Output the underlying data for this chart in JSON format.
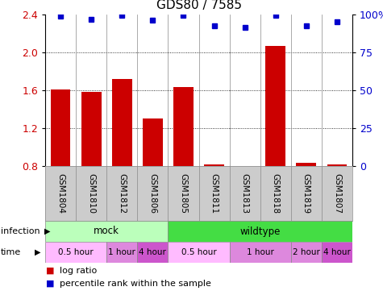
{
  "title": "GDS80 / 7585",
  "samples": [
    "GSM1804",
    "GSM1810",
    "GSM1812",
    "GSM1806",
    "GSM1805",
    "GSM1811",
    "GSM1813",
    "GSM1818",
    "GSM1819",
    "GSM1807"
  ],
  "log_ratio": [
    1.61,
    1.58,
    1.72,
    1.3,
    1.63,
    0.82,
    0.8,
    2.07,
    0.83,
    0.82
  ],
  "percentile_y": [
    2.38,
    2.35,
    2.395,
    2.34,
    2.395,
    2.285,
    2.26,
    2.395,
    2.285,
    2.32
  ],
  "ylim": [
    0.8,
    2.4
  ],
  "yticks_left": [
    0.8,
    1.2,
    1.6,
    2.0,
    2.4
  ],
  "yticks_right": [
    0,
    25,
    50,
    75,
    100
  ],
  "bar_color": "#cc0000",
  "dot_color": "#0000cc",
  "infection_groups": [
    {
      "label": "mock",
      "start": 0,
      "end": 4,
      "color": "#bbffbb"
    },
    {
      "label": "wildtype",
      "start": 4,
      "end": 10,
      "color": "#44dd44"
    }
  ],
  "time_groups": [
    {
      "label": "0.5 hour",
      "start": 0,
      "end": 2,
      "color": "#ffbbff"
    },
    {
      "label": "1 hour",
      "start": 2,
      "end": 3,
      "color": "#dd88dd"
    },
    {
      "label": "4 hour",
      "start": 3,
      "end": 4,
      "color": "#cc55cc"
    },
    {
      "label": "0.5 hour",
      "start": 4,
      "end": 6,
      "color": "#ffbbff"
    },
    {
      "label": "1 hour",
      "start": 6,
      "end": 8,
      "color": "#dd88dd"
    },
    {
      "label": "2 hour",
      "start": 8,
      "end": 9,
      "color": "#dd88dd"
    },
    {
      "label": "4 hour",
      "start": 9,
      "end": 10,
      "color": "#cc55cc"
    }
  ],
  "legend_items": [
    {
      "label": "log ratio",
      "color": "#cc0000"
    },
    {
      "label": "percentile rank within the sample",
      "color": "#0000cc"
    }
  ],
  "fig_w": 4.75,
  "fig_h": 3.66,
  "dpi": 100
}
